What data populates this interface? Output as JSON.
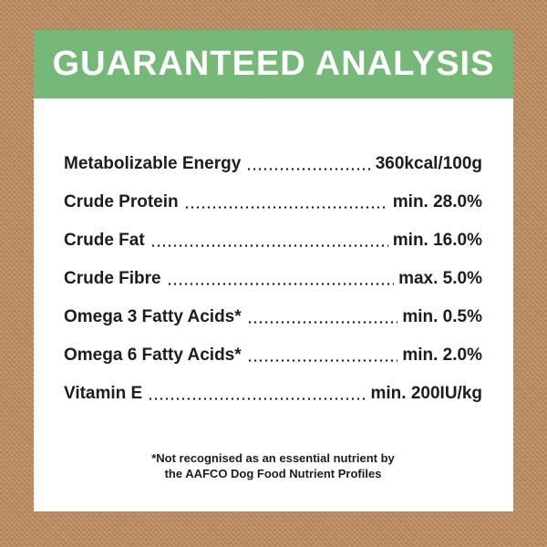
{
  "label": {
    "title": "GUARANTEED ANALYSIS",
    "rows": [
      {
        "name": "Metabolizable Energy",
        "value": "360kcal/100g"
      },
      {
        "name": "Crude Protein",
        "value": "min. 28.0%"
      },
      {
        "name": "Crude Fat",
        "value": "min. 16.0%"
      },
      {
        "name": "Crude Fibre",
        "value": "max. 5.0%"
      },
      {
        "name": "Omega 3 Fatty Acids*",
        "value": "min. 0.5%"
      },
      {
        "name": "Omega 6 Fatty Acids*",
        "value": "min. 2.0%"
      },
      {
        "name": "Vitamin E",
        "value": "min. 200IU/kg"
      }
    ],
    "footnote_line1": "*Not recognised as an essential nutrient by",
    "footnote_line2": "the AAFCO Dog Food Nutrient Profiles",
    "colors": {
      "header_green": "#76b878",
      "background_brown": "#b8895e",
      "text_dark": "#1d1d1b",
      "card_white": "#ffffff"
    }
  }
}
